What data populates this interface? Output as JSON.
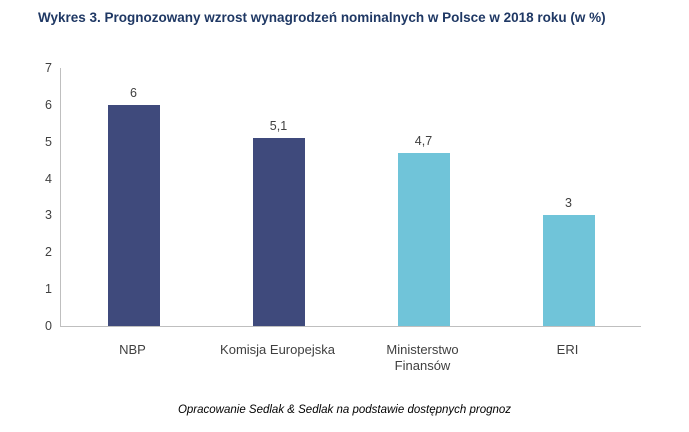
{
  "title": "Wykres 3. Prognozowany wzrost wynagrodzeń nominalnych w Polsce w 2018 roku (w %)",
  "footer": "Opracowanie Sedlak & Sedlak na podstawie dostępnych prognoz",
  "colors": {
    "title_text": "#1f3864",
    "axis_line": "#bfbfbf",
    "tick_text": "#404040",
    "navy_bar": "#3f4a7c",
    "light_blue_bar": "#70c4d9"
  },
  "chart_data": {
    "type": "bar",
    "title": "Wykres 3. Prognozowany wzrost wynagrodzeń nominalnych w Polsce w 2018 roku (w %)",
    "categories": [
      "NBP",
      "Komisja Europejska",
      "Ministerstwo Finansów",
      "ERI"
    ],
    "values": [
      6,
      5.1,
      4.7,
      3
    ],
    "value_labels": [
      "6",
      "5,1",
      "4,7",
      "3"
    ],
    "bar_colors": [
      "#3f4a7c",
      "#3f4a7c",
      "#70c4d9",
      "#70c4d9"
    ],
    "xlabel": "",
    "ylabel": "",
    "ylim": [
      0,
      7
    ],
    "yticks": [
      0,
      1,
      2,
      3,
      4,
      5,
      6,
      7
    ],
    "grid": false,
    "legend": "none"
  }
}
